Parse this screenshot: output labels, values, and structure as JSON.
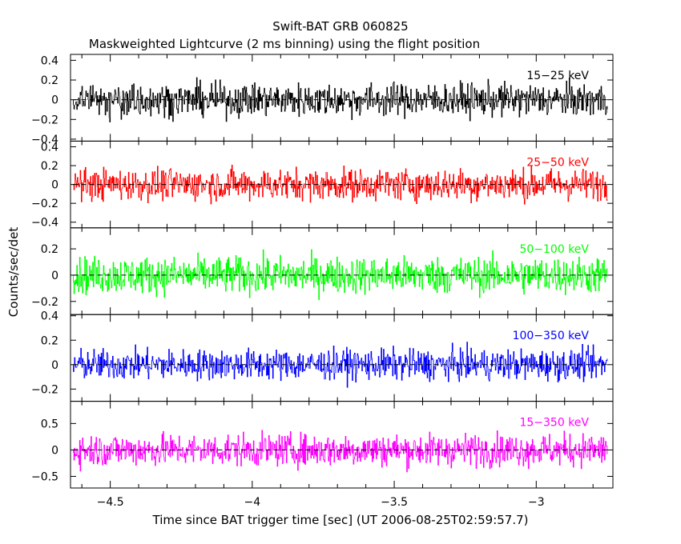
{
  "chart_data": {
    "type": "line",
    "title": "Swift-BAT GRB 060825",
    "subtitle": "Maskweighted Lightcurve (2 ms binning) using the flight position",
    "xlabel": "Time since BAT trigger time [sec] (UT 2006-08-25T02:59:57.7)",
    "ylabel": "Counts/sec/det",
    "xlim": [
      -4.64,
      -2.73
    ],
    "x_ticks": [
      -4.5,
      -4,
      -3.5,
      -3
    ],
    "x_tick_labels": [
      "−4.5",
      "−4",
      "−3.5",
      "−3"
    ],
    "bin_seconds": 0.002,
    "series": [
      {
        "name": "15−25 keV",
        "color": "#000000",
        "ylim": [
          -0.42,
          0.46
        ],
        "y_ticks": [
          -0.4,
          -0.2,
          0,
          0.2,
          0.4
        ],
        "y_tick_labels": [
          "−0.4",
          "−0.2",
          "0",
          "0.2",
          "0.4"
        ],
        "noise_amplitude": 0.12
      },
      {
        "name": "25−50 keV",
        "color": "#ff0000",
        "ylim": [
          -0.46,
          0.46
        ],
        "y_ticks": [
          -0.4,
          -0.2,
          0,
          0.2,
          0.4
        ],
        "y_tick_labels": [
          "−0.4",
          "−0.2",
          "0",
          "0.2",
          "0.4"
        ],
        "noise_amplitude": 0.12
      },
      {
        "name": "50−100 keV",
        "color": "#00ff00",
        "ylim": [
          -0.3,
          0.36
        ],
        "y_ticks": [
          -0.2,
          0,
          0.2
        ],
        "y_tick_labels": [
          "−0.2",
          "0",
          "0.2"
        ],
        "noise_amplitude": 0.1
      },
      {
        "name": "100−350 keV",
        "color": "#0000ff",
        "ylim": [
          -0.3,
          0.41
        ],
        "y_ticks": [
          -0.2,
          0,
          0.2,
          0.4
        ],
        "y_tick_labels": [
          "−0.2",
          "0",
          "0.2",
          "0.4"
        ],
        "noise_amplitude": 0.09
      },
      {
        "name": "15−350 keV",
        "color": "#ff00ff",
        "ylim": [
          -0.72,
          0.92
        ],
        "y_ticks": [
          -0.5,
          0,
          0.5
        ],
        "y_tick_labels": [
          "−0.5",
          "0",
          "0.5"
        ],
        "noise_amplitude": 0.22
      }
    ]
  }
}
